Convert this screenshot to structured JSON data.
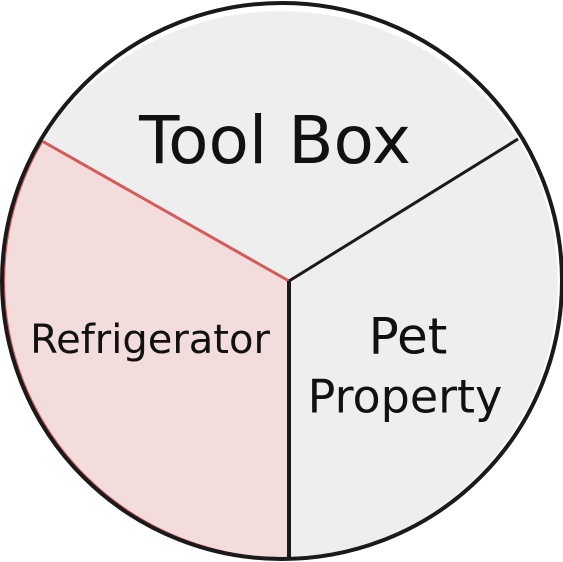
{
  "diagram": {
    "segments": [
      {
        "id": "tool-box",
        "lines": [
          "Tool Box"
        ],
        "highlighted": false
      },
      {
        "id": "refrigerator",
        "lines": [
          "Refrigerator"
        ],
        "highlighted": true
      },
      {
        "id": "pet-property",
        "lines": [
          "Pet",
          "Property"
        ],
        "highlighted": false
      }
    ],
    "colors": {
      "segment_fill": "#eeeeee",
      "highlight_fill": "#f3dcdc",
      "highlight_stroke": "#d65a5a",
      "outline": "#1a1a1a"
    }
  }
}
